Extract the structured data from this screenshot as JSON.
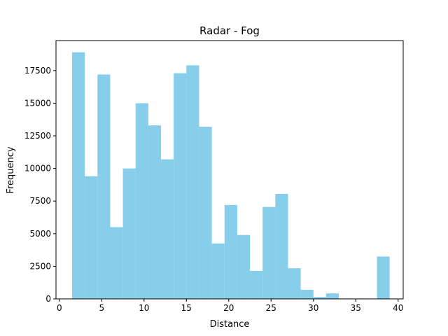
{
  "chart_data": {
    "type": "bar",
    "title": "Radar - Fog",
    "xlabel": "Distance",
    "ylabel": "Frequency",
    "xlim": [
      -0.4,
      40.6
    ],
    "ylim": [
      0,
      19800
    ],
    "xticks": [
      0,
      5,
      10,
      15,
      20,
      25,
      30,
      35,
      40
    ],
    "yticks": [
      0,
      2500,
      5000,
      7500,
      10000,
      12500,
      15000,
      17500
    ],
    "bar_color": "#87ceeb",
    "grid": false,
    "bins": [
      {
        "x0": 1.5,
        "x1": 3.0,
        "value": 18900
      },
      {
        "x0": 3.0,
        "x1": 4.5,
        "value": 9400
      },
      {
        "x0": 4.5,
        "x1": 6.0,
        "value": 17200
      },
      {
        "x0": 6.0,
        "x1": 7.5,
        "value": 5500
      },
      {
        "x0": 7.5,
        "x1": 9.0,
        "value": 10000
      },
      {
        "x0": 9.0,
        "x1": 10.5,
        "value": 15000
      },
      {
        "x0": 10.5,
        "x1": 12.0,
        "value": 13300
      },
      {
        "x0": 12.0,
        "x1": 13.5,
        "value": 10700
      },
      {
        "x0": 13.5,
        "x1": 15.0,
        "value": 17300
      },
      {
        "x0": 15.0,
        "x1": 16.5,
        "value": 17900
      },
      {
        "x0": 16.5,
        "x1": 18.0,
        "value": 13200
      },
      {
        "x0": 18.0,
        "x1": 19.5,
        "value": 4250
      },
      {
        "x0": 19.5,
        "x1": 21.0,
        "value": 7200
      },
      {
        "x0": 21.0,
        "x1": 22.5,
        "value": 4900
      },
      {
        "x0": 22.5,
        "x1": 24.0,
        "value": 2150
      },
      {
        "x0": 24.0,
        "x1": 25.5,
        "value": 7050
      },
      {
        "x0": 25.5,
        "x1": 27.0,
        "value": 8050
      },
      {
        "x0": 27.0,
        "x1": 28.5,
        "value": 2350
      },
      {
        "x0": 28.5,
        "x1": 30.0,
        "value": 700
      },
      {
        "x0": 30.0,
        "x1": 31.5,
        "value": 150
      },
      {
        "x0": 31.5,
        "x1": 33.0,
        "value": 420
      },
      {
        "x0": 33.0,
        "x1": 34.5,
        "value": 30
      },
      {
        "x0": 34.5,
        "x1": 36.0,
        "value": 30
      },
      {
        "x0": 36.0,
        "x1": 37.5,
        "value": 0
      },
      {
        "x0": 37.5,
        "x1": 39.0,
        "value": 3250
      }
    ]
  }
}
